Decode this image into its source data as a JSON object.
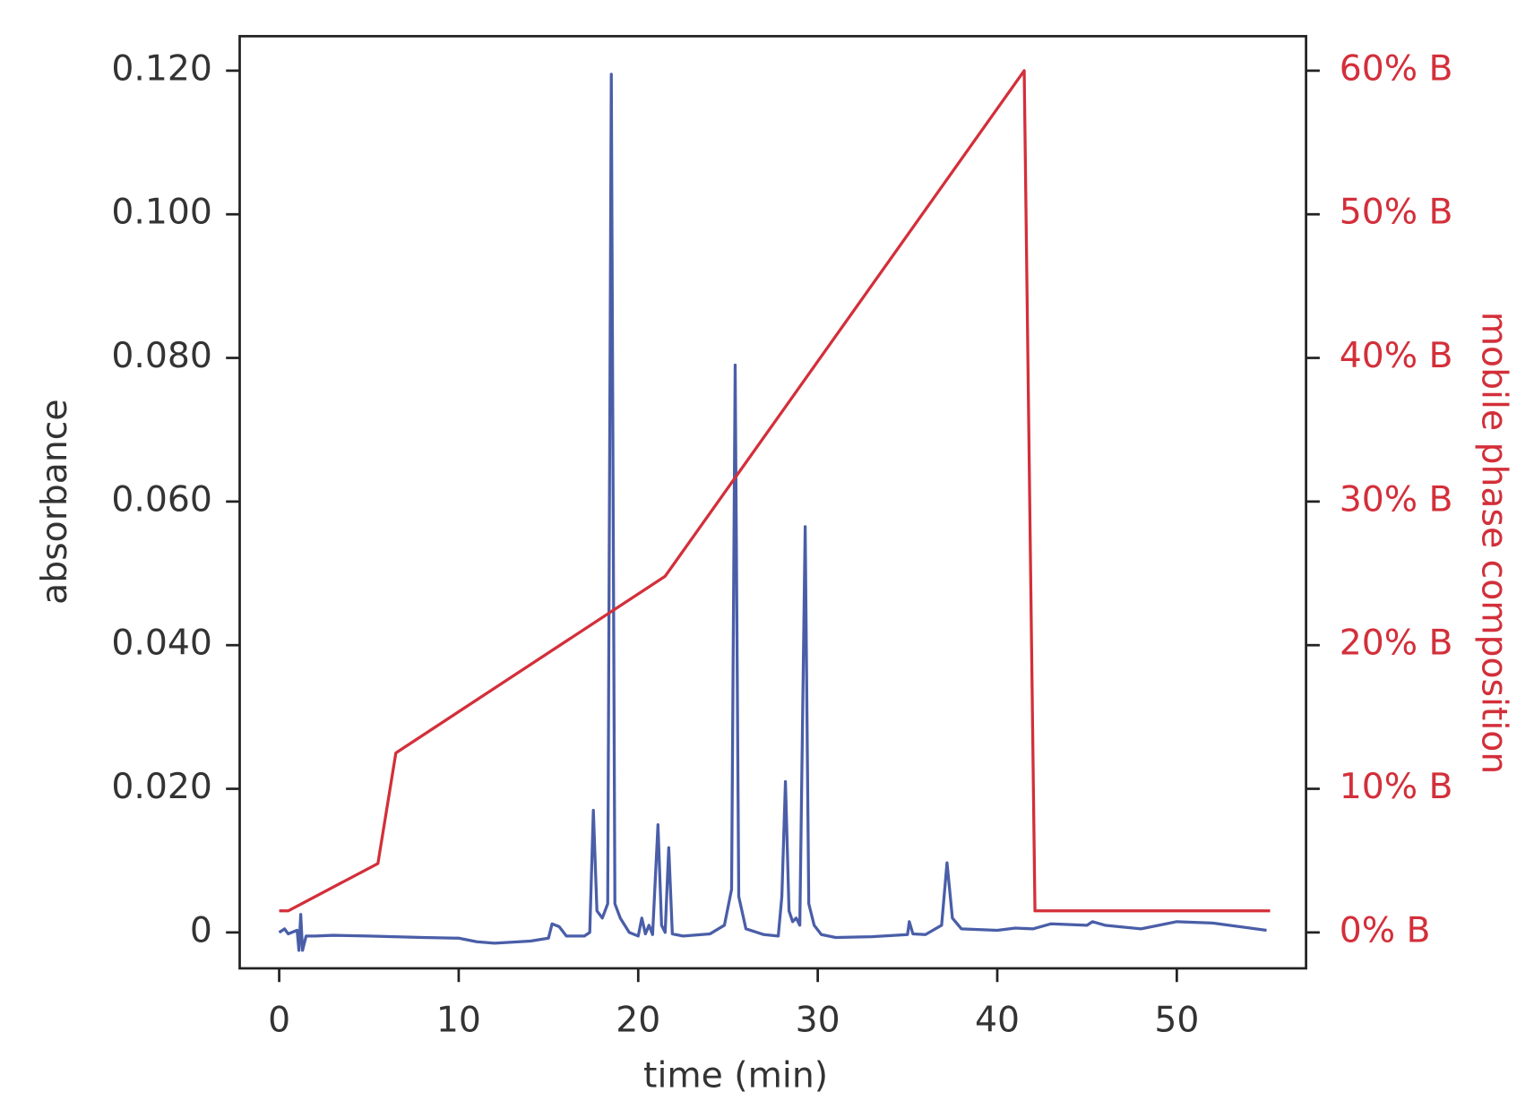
{
  "chart_data": {
    "type": "line",
    "x_label": "time (min)",
    "y_label": "absorbance",
    "y2_label": "mobile phase composition",
    "xlim": [
      -2.2,
      57.2
    ],
    "xticks": [
      0,
      10,
      20,
      30,
      40,
      50
    ],
    "ylim": [
      -0.005,
      0.1248
    ],
    "yticks": [
      0,
      {
        "value": 0.02,
        "label": "0.020"
      },
      {
        "value": 0.04,
        "label": "0.040"
      },
      {
        "value": 0.06,
        "label": "0.060"
      },
      {
        "value": 0.08,
        "label": "0.080"
      },
      {
        "value": 0.1,
        "label": "0.100"
      },
      {
        "value": 0.12,
        "label": "0.120"
      }
    ],
    "y2lim": [
      -2.5,
      62.4
    ],
    "y2ticks": [
      {
        "value": 0,
        "label": "0% B"
      },
      {
        "value": 10,
        "label": "10% B"
      },
      {
        "value": 20,
        "label": "20% B"
      },
      {
        "value": 30,
        "label": "30% B"
      },
      {
        "value": 40,
        "label": "40% B"
      },
      {
        "value": 50,
        "label": "50% B"
      },
      {
        "value": 60,
        "label": "60% B"
      }
    ],
    "y2_color": "#d32f3a",
    "series": [
      {
        "name": "absorbance",
        "color": "#4a5ea8",
        "x": [
          0,
          0.3,
          0.5,
          1.0,
          1.1,
          1.2,
          1.3,
          1.5,
          2,
          3,
          5,
          8,
          10,
          11,
          12,
          14,
          15,
          15.2,
          15.6,
          16,
          17,
          17.3,
          17.5,
          17.7,
          18,
          18.3,
          18.5,
          18.7,
          19,
          19.5,
          20,
          20.2,
          20.4,
          20.6,
          20.8,
          21.1,
          21.3,
          21.5,
          21.7,
          21.9,
          22.5,
          24,
          24.8,
          25.2,
          25.4,
          25.6,
          26,
          27,
          27.8,
          28,
          28.2,
          28.4,
          28.6,
          28.8,
          29,
          29.3,
          29.5,
          29.8,
          30.2,
          31,
          33,
          35,
          35.1,
          35.3,
          36,
          36.9,
          37.2,
          37.5,
          38,
          40,
          41,
          42,
          43,
          45,
          45.3,
          46,
          48,
          50,
          52,
          55
        ],
        "values": [
          0,
          0.0005,
          -0.0002,
          0.0003,
          -0.0025,
          0.0025,
          -0.0025,
          -0.0005,
          -0.0005,
          -0.0004,
          -0.0005,
          -0.0007,
          -0.0008,
          -0.0013,
          -0.0015,
          -0.0012,
          -0.0008,
          0.0012,
          0.0008,
          -0.0005,
          -0.0005,
          0,
          0.017,
          0.003,
          0.002,
          0.004,
          0.1195,
          0.004,
          0.002,
          0,
          -0.0005,
          0.002,
          -0.0002,
          0.001,
          -0.0003,
          0.015,
          0.001,
          0,
          0.0118,
          -0.0002,
          -0.0005,
          -0.0002,
          0.001,
          0.006,
          0.079,
          0.005,
          0.0005,
          -0.0003,
          -0.0005,
          0.005,
          0.021,
          0.003,
          0.0015,
          0.002,
          0.001,
          0.0565,
          0.004,
          0.001,
          -0.0003,
          -0.0007,
          -0.0006,
          -0.0003,
          0.0015,
          -0.0002,
          -0.0003,
          0.001,
          0.0097,
          0.002,
          0.0005,
          0.0003,
          0.0006,
          0.0005,
          0.0012,
          0.001,
          0.0015,
          0.001,
          0.0005,
          0.0015,
          0.0013,
          0.0003
        ]
      },
      {
        "name": "mobile phase composition",
        "color": "#d32f3a",
        "axis": "y2",
        "x": [
          0,
          0.5,
          5.5,
          6.5,
          21.5,
          41.5,
          42.1,
          55.2
        ],
        "values": [
          1.5,
          1.5,
          4.8,
          12.5,
          24.8,
          60,
          1.5,
          1.5
        ]
      }
    ]
  }
}
